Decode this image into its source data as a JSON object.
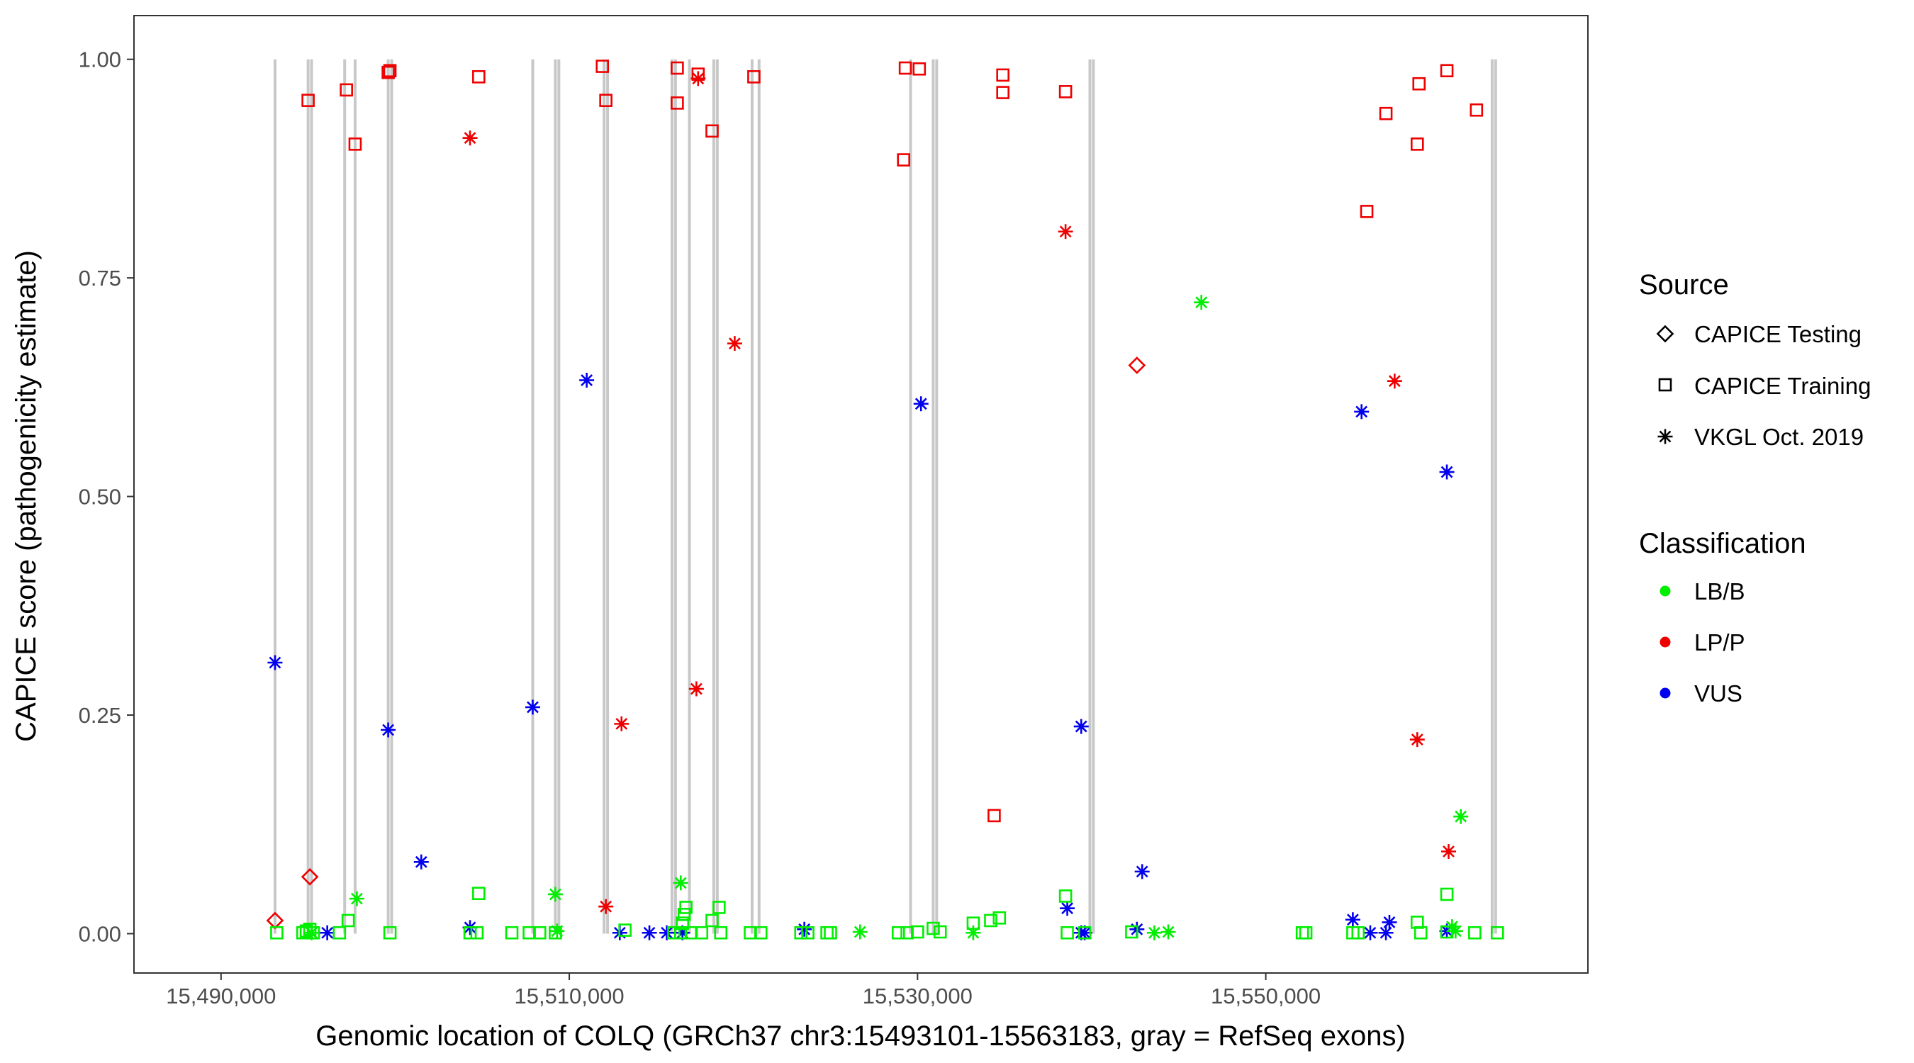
{
  "chart_data": {
    "type": "scatter",
    "title": "",
    "xlabel": "Genomic location of COLQ (GRCh37 chr3:15493101-15563183, gray = RefSeq exons)",
    "ylabel": "CAPICE score (pathogenicity estimate)",
    "xlim": [
      15485000,
      15568500
    ],
    "ylim": [
      -0.045,
      1.05
    ],
    "x_ticks": [
      15490000,
      15510000,
      15530000,
      15550000
    ],
    "x_tick_labels": [
      "15,490,000",
      "15,510,000",
      "15,530,000",
      "15,550,000"
    ],
    "y_ticks": [
      0,
      0.25,
      0.5,
      0.75,
      1.0
    ],
    "y_tick_labels": [
      "0.00",
      "0.25",
      "0.50",
      "0.75",
      "1.00"
    ],
    "grid": false,
    "exons": [
      15493100,
      15495000,
      15495200,
      15497100,
      15497700,
      15499600,
      15499800,
      15507900,
      15509200,
      15509400,
      15512000,
      15512200,
      15515900,
      15516100,
      15516900,
      15518300,
      15518500,
      15520500,
      15520900,
      15529600,
      15530900,
      15531100,
      15539900,
      15540100,
      15563000,
      15563200
    ],
    "legend": {
      "position": "right",
      "source_title": "Source",
      "source_items": [
        {
          "label": "CAPICE Testing",
          "shape": "diamond"
        },
        {
          "label": "CAPICE Training",
          "shape": "square"
        },
        {
          "label": "VKGL Oct. 2019",
          "shape": "asterisk"
        }
      ],
      "class_title": "Classification",
      "class_items": [
        {
          "label": "LB/B",
          "color": "#00ee00"
        },
        {
          "label": "LP/P",
          "color": "#ee0000"
        },
        {
          "label": "VUS",
          "color": "#0000ee"
        }
      ]
    },
    "series": [
      {
        "name": "LP/P",
        "source": "CAPICE Testing",
        "shape": "diamond",
        "color": "#ee0000",
        "points": [
          [
            15493100,
            0.015
          ],
          [
            15495100,
            0.065
          ],
          [
            15542600,
            0.65
          ]
        ]
      },
      {
        "name": "LP/P",
        "source": "CAPICE Training",
        "shape": "square",
        "color": "#ee0000",
        "points": [
          [
            15495000,
            0.953
          ],
          [
            15497200,
            0.965
          ],
          [
            15497700,
            0.903
          ],
          [
            15499600,
            0.985
          ],
          [
            15499700,
            0.987
          ],
          [
            15504800,
            0.98
          ],
          [
            15511900,
            0.992
          ],
          [
            15512100,
            0.953
          ],
          [
            15516200,
            0.99
          ],
          [
            15516200,
            0.95
          ],
          [
            15517400,
            0.983
          ],
          [
            15518200,
            0.918
          ],
          [
            15520600,
            0.98
          ],
          [
            15529200,
            0.885
          ],
          [
            15529300,
            0.99
          ],
          [
            15530100,
            0.989
          ],
          [
            15534400,
            0.135
          ],
          [
            15534900,
            0.982
          ],
          [
            15534900,
            0.962
          ],
          [
            15538500,
            0.963
          ],
          [
            15555800,
            0.826
          ],
          [
            15556900,
            0.938
          ],
          [
            15558700,
            0.903
          ],
          [
            15558800,
            0.972
          ],
          [
            15560400,
            0.987
          ],
          [
            15562100,
            0.942
          ]
        ]
      },
      {
        "name": "LP/P",
        "source": "VKGL Oct. 2019",
        "shape": "asterisk",
        "color": "#ee0000",
        "points": [
          [
            15504300,
            0.91
          ],
          [
            15512100,
            0.031
          ],
          [
            15513000,
            0.24
          ],
          [
            15517300,
            0.28
          ],
          [
            15517400,
            0.978
          ],
          [
            15519500,
            0.675
          ],
          [
            15538500,
            0.803
          ],
          [
            15557400,
            0.632
          ],
          [
            15558700,
            0.222
          ],
          [
            15560500,
            0.094
          ]
        ]
      },
      {
        "name": "VUS",
        "source": "VKGL Oct. 2019",
        "shape": "asterisk",
        "color": "#0000ee",
        "points": [
          [
            15493100,
            0.31
          ],
          [
            15496100,
            0.001
          ],
          [
            15499600,
            0.233
          ],
          [
            15501500,
            0.082
          ],
          [
            15504300,
            0.007
          ],
          [
            15507900,
            0.259
          ],
          [
            15511000,
            0.633
          ],
          [
            15512900,
            0.001
          ],
          [
            15514600,
            0.001
          ],
          [
            15515600,
            0.001
          ],
          [
            15516500,
            0.001
          ],
          [
            15523500,
            0.005
          ],
          [
            15530200,
            0.606
          ],
          [
            15538600,
            0.029
          ],
          [
            15539400,
            0.237
          ],
          [
            15539400,
            0.001
          ],
          [
            15539600,
            0.001
          ],
          [
            15542600,
            0.005
          ],
          [
            15542900,
            0.071
          ],
          [
            15555000,
            0.016
          ],
          [
            15556000,
            0.001
          ],
          [
            15556900,
            0.001
          ],
          [
            15557100,
            0.013
          ],
          [
            15555500,
            0.597
          ],
          [
            15560400,
            0.528
          ],
          [
            15560400,
            0.003
          ]
        ]
      },
      {
        "name": "LB/B",
        "source": "CAPICE Training",
        "shape": "square",
        "color": "#00ee00",
        "points": [
          [
            15493200,
            0.001
          ],
          [
            15494700,
            0.001
          ],
          [
            15494900,
            0.003
          ],
          [
            15495100,
            0.005
          ],
          [
            15495300,
            0.001
          ],
          [
            15496800,
            0.001
          ],
          [
            15497300,
            0.015
          ],
          [
            15499700,
            0.001
          ],
          [
            15504300,
            0.001
          ],
          [
            15504700,
            0.001
          ],
          [
            15504800,
            0.046
          ],
          [
            15506700,
            0.001
          ],
          [
            15507700,
            0.001
          ],
          [
            15508300,
            0.001
          ],
          [
            15509200,
            0.001
          ],
          [
            15513200,
            0.004
          ],
          [
            15516000,
            0.001
          ],
          [
            15516400,
            0.001
          ],
          [
            15516500,
            0.012
          ],
          [
            15516600,
            0.022
          ],
          [
            15516700,
            0.03
          ],
          [
            15517000,
            0.001
          ],
          [
            15517600,
            0.001
          ],
          [
            15518200,
            0.015
          ],
          [
            15518600,
            0.03
          ],
          [
            15518700,
            0.001
          ],
          [
            15520400,
            0.001
          ],
          [
            15521000,
            0.001
          ],
          [
            15523300,
            0.001
          ],
          [
            15523700,
            0.001
          ],
          [
            15524800,
            0.001
          ],
          [
            15525000,
            0.001
          ],
          [
            15528900,
            0.001
          ],
          [
            15529400,
            0.001
          ],
          [
            15530000,
            0.002
          ],
          [
            15530900,
            0.006
          ],
          [
            15531300,
            0.002
          ],
          [
            15533200,
            0.012
          ],
          [
            15534200,
            0.015
          ],
          [
            15534700,
            0.018
          ],
          [
            15538500,
            0.043
          ],
          [
            15538600,
            0.001
          ],
          [
            15539600,
            0.001
          ],
          [
            15542300,
            0.002
          ],
          [
            15552100,
            0.001
          ],
          [
            15552300,
            0.001
          ],
          [
            15555000,
            0.001
          ],
          [
            15555300,
            0.001
          ],
          [
            15558700,
            0.013
          ],
          [
            15558900,
            0.001
          ],
          [
            15560400,
            0.045
          ],
          [
            15560400,
            0.002
          ],
          [
            15562000,
            0.001
          ],
          [
            15563300,
            0.001
          ]
        ]
      },
      {
        "name": "LB/B",
        "source": "VKGL Oct. 2019",
        "shape": "asterisk",
        "color": "#00ee00",
        "points": [
          [
            15495200,
            0.001
          ],
          [
            15497800,
            0.04
          ],
          [
            15509200,
            0.045
          ],
          [
            15509300,
            0.003
          ],
          [
            15516400,
            0.058
          ],
          [
            15526700,
            0.002
          ],
          [
            15533200,
            0.001
          ],
          [
            15543600,
            0.001
          ],
          [
            15544400,
            0.002
          ],
          [
            15546300,
            0.722
          ],
          [
            15561200,
            0.134
          ],
          [
            15560700,
            0.008
          ],
          [
            15560900,
            0.003
          ]
        ]
      }
    ]
  }
}
